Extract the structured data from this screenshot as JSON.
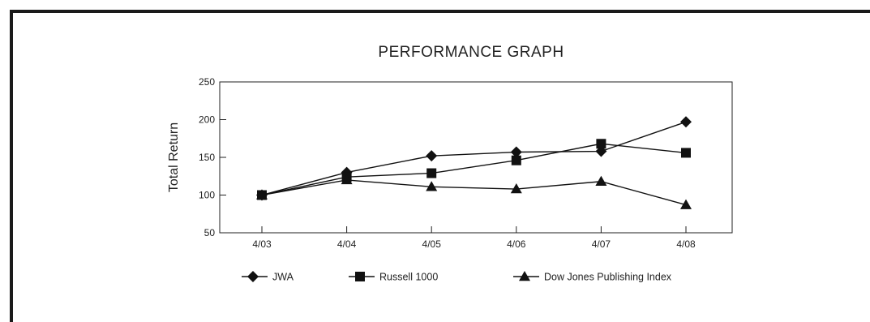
{
  "chart_data": {
    "type": "line",
    "title": "PERFORMANCE GRAPH",
    "xlabel": "",
    "ylabel": "Total Return",
    "categories": [
      "4/03",
      "4/04",
      "4/05",
      "4/06",
      "4/07",
      "4/08"
    ],
    "ylim": [
      50,
      250
    ],
    "yticks": [
      "250",
      "200",
      "150",
      "100",
      "50"
    ],
    "grid": false,
    "legend_position": "bottom",
    "series": [
      {
        "name": "JWA",
        "marker": "diamond",
        "color": "#111111",
        "values": [
          100,
          130,
          152,
          157,
          158,
          197
        ]
      },
      {
        "name": "Russell 1000",
        "marker": "square",
        "color": "#111111",
        "values": [
          100,
          124,
          129,
          146,
          168,
          156
        ]
      },
      {
        "name": "Dow Jones Publishing Index",
        "marker": "triangle",
        "color": "#111111",
        "values": [
          100,
          120,
          111,
          108,
          118,
          87
        ]
      }
    ]
  }
}
